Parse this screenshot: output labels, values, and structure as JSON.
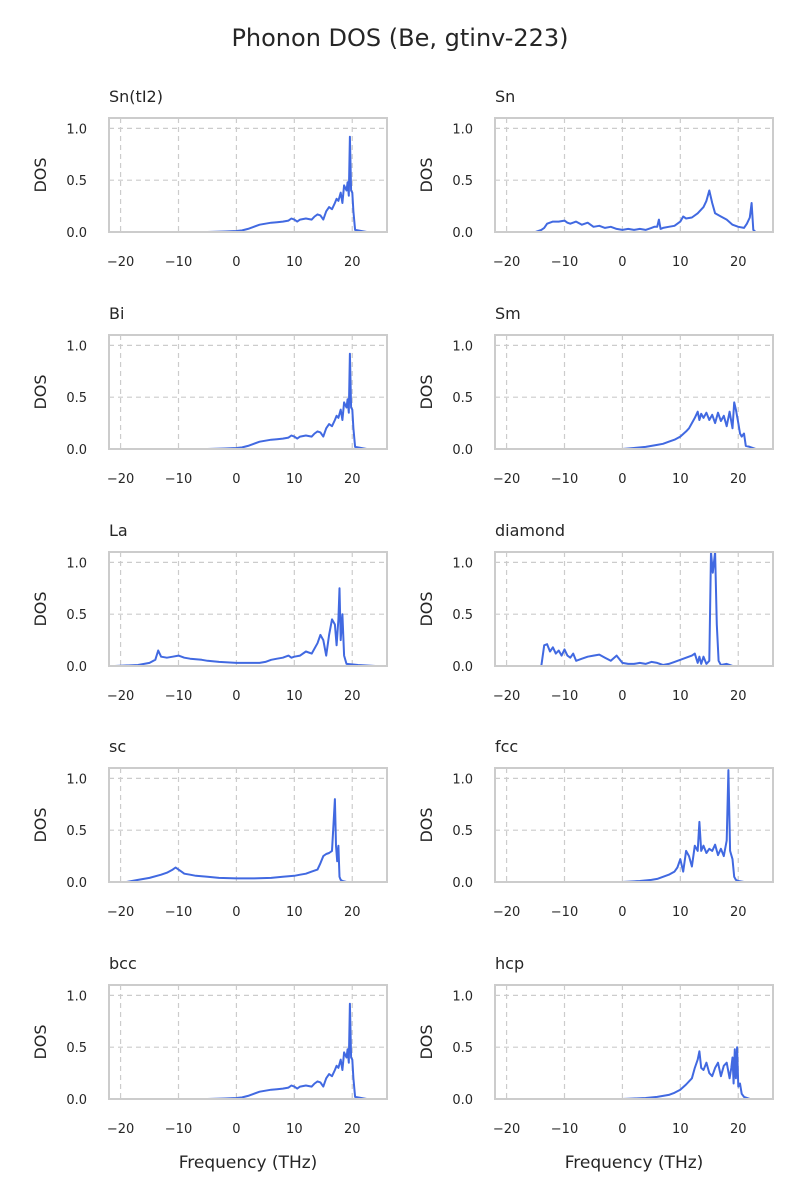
{
  "figure": {
    "title": "Phonon DOS (Be, gtinv-223)"
  },
  "styles": {
    "line_color": "#4169e1",
    "grid_color": "#cccccc",
    "frame_color": "#cccccc",
    "text_color": "#262626"
  },
  "chart_data": [
    {
      "type": "line",
      "title": "Sn(tI2)",
      "xlabel": "",
      "ylabel": "DOS",
      "xlim": [
        -22,
        26
      ],
      "ylim": [
        0,
        1.1
      ],
      "grid": true,
      "xticks": [
        "−20",
        "−10",
        "0",
        "10",
        "20"
      ],
      "yticks": [
        "0.0",
        "0.5",
        "1.0"
      ],
      "x": [
        -5,
        -2,
        0,
        1,
        2,
        3,
        4,
        5,
        6,
        7,
        8,
        9,
        9.5,
        10,
        10.5,
        11,
        12,
        13,
        13.5,
        14,
        14.5,
        15,
        15.5,
        16,
        16.5,
        17,
        17.3,
        17.6,
        18,
        18.3,
        18.6,
        19,
        19.2,
        19.4,
        19.6,
        19.8,
        20,
        20.2,
        20.5,
        22.5
      ],
      "y": [
        0,
        0.005,
        0.01,
        0.015,
        0.03,
        0.05,
        0.07,
        0.08,
        0.09,
        0.095,
        0.1,
        0.11,
        0.13,
        0.12,
        0.1,
        0.12,
        0.13,
        0.12,
        0.15,
        0.17,
        0.16,
        0.12,
        0.2,
        0.24,
        0.22,
        0.28,
        0.32,
        0.3,
        0.38,
        0.28,
        0.45,
        0.4,
        0.48,
        0.35,
        0.92,
        0.4,
        0.38,
        0.2,
        0.02,
        0
      ]
    },
    {
      "type": "line",
      "title": "Sn",
      "xlabel": "",
      "ylabel": "DOS",
      "xlim": [
        -22,
        26
      ],
      "ylim": [
        0,
        1.1
      ],
      "grid": true,
      "xticks": [
        "−20",
        "−10",
        "0",
        "10",
        "20"
      ],
      "yticks": [
        "0.0",
        "0.5",
        "1.0"
      ],
      "x": [
        -18,
        -15,
        -14,
        -13.5,
        -13,
        -12,
        -11,
        -10,
        -9.5,
        -9,
        -8,
        -7,
        -6,
        -5,
        -4,
        -3,
        -2,
        -1,
        0,
        1,
        2,
        3,
        4,
        5,
        5.5,
        6,
        6.3,
        6.6,
        7,
        8,
        9,
        9.5,
        10,
        10.5,
        11,
        12,
        13,
        14,
        14.5,
        15,
        15.5,
        16,
        17,
        18,
        19,
        20,
        21,
        21.5,
        22,
        22.3,
        22.6,
        23,
        26
      ],
      "y": [
        0,
        0,
        0.02,
        0.04,
        0.08,
        0.1,
        0.1,
        0.11,
        0.09,
        0.08,
        0.1,
        0.07,
        0.09,
        0.05,
        0.06,
        0.04,
        0.05,
        0.03,
        0.02,
        0.03,
        0.02,
        0.03,
        0.02,
        0.04,
        0.05,
        0.05,
        0.12,
        0.03,
        0.04,
        0.05,
        0.06,
        0.08,
        0.1,
        0.15,
        0.13,
        0.14,
        0.18,
        0.24,
        0.3,
        0.4,
        0.28,
        0.18,
        0.15,
        0.12,
        0.07,
        0.05,
        0.04,
        0.08,
        0.14,
        0.28,
        0.02,
        0,
        0
      ]
    },
    {
      "type": "line",
      "title": "Bi",
      "xlabel": "",
      "ylabel": "DOS",
      "xlim": [
        -22,
        26
      ],
      "ylim": [
        0,
        1.1
      ],
      "grid": true,
      "xticks": [
        "−20",
        "−10",
        "0",
        "10",
        "20"
      ],
      "yticks": [
        "0.0",
        "0.5",
        "1.0"
      ],
      "x": [
        -5,
        -2,
        0,
        1,
        2,
        3,
        4,
        5,
        6,
        7,
        8,
        9,
        9.5,
        10,
        10.5,
        11,
        12,
        13,
        13.5,
        14,
        14.5,
        15,
        15.5,
        16,
        16.5,
        17,
        17.3,
        17.6,
        18,
        18.3,
        18.6,
        19,
        19.2,
        19.4,
        19.6,
        19.8,
        20,
        20.2,
        20.5,
        22.5
      ],
      "y": [
        0,
        0.005,
        0.01,
        0.015,
        0.03,
        0.05,
        0.07,
        0.08,
        0.09,
        0.095,
        0.1,
        0.11,
        0.13,
        0.12,
        0.1,
        0.12,
        0.13,
        0.12,
        0.15,
        0.17,
        0.16,
        0.12,
        0.2,
        0.24,
        0.22,
        0.28,
        0.32,
        0.3,
        0.38,
        0.28,
        0.45,
        0.4,
        0.48,
        0.35,
        0.92,
        0.4,
        0.38,
        0.2,
        0.02,
        0
      ]
    },
    {
      "type": "line",
      "title": "Sm",
      "xlabel": "",
      "ylabel": "DOS",
      "xlim": [
        -22,
        26
      ],
      "ylim": [
        0,
        1.1
      ],
      "grid": true,
      "xticks": [
        "−20",
        "−10",
        "0",
        "10",
        "20"
      ],
      "yticks": [
        "0.0",
        "0.5",
        "1.0"
      ],
      "x": [
        0,
        2,
        4,
        5,
        6,
        7,
        8,
        9,
        10,
        11,
        11.5,
        12,
        12.5,
        13,
        13.3,
        13.6,
        14,
        14.5,
        15,
        15.5,
        16,
        16.5,
        17,
        17.5,
        18,
        18.5,
        19,
        19.3,
        19.6,
        20,
        20.3,
        20.6,
        21,
        21.3,
        22,
        23
      ],
      "y": [
        0,
        0.01,
        0.02,
        0.03,
        0.04,
        0.05,
        0.07,
        0.09,
        0.12,
        0.17,
        0.2,
        0.25,
        0.3,
        0.36,
        0.28,
        0.34,
        0.3,
        0.35,
        0.28,
        0.33,
        0.25,
        0.35,
        0.27,
        0.32,
        0.22,
        0.36,
        0.2,
        0.45,
        0.38,
        0.25,
        0.15,
        0.12,
        0.15,
        0.03,
        0.02,
        0
      ]
    },
    {
      "type": "line",
      "title": "La",
      "xlabel": "",
      "ylabel": "DOS",
      "xlim": [
        -22,
        26
      ],
      "ylim": [
        0,
        1.1
      ],
      "grid": true,
      "xticks": [
        "−20",
        "−10",
        "0",
        "10",
        "20"
      ],
      "yticks": [
        "0.0",
        "0.5",
        "1.0"
      ],
      "x": [
        -21,
        -17,
        -15,
        -14,
        -13.5,
        -13,
        -12,
        -11,
        -10,
        -9,
        -8,
        -6,
        -5,
        -3,
        0,
        2,
        4,
        5,
        6,
        7,
        8,
        9,
        9.5,
        10,
        11,
        12,
        13,
        14,
        14.5,
        15,
        15.5,
        16,
        16.5,
        17,
        17.3,
        17.6,
        17.8,
        18,
        18.3,
        18.6,
        19,
        21,
        24
      ],
      "y": [
        0,
        0.01,
        0.03,
        0.06,
        0.15,
        0.09,
        0.08,
        0.09,
        0.1,
        0.08,
        0.07,
        0.06,
        0.05,
        0.04,
        0.03,
        0.03,
        0.03,
        0.04,
        0.06,
        0.07,
        0.08,
        0.1,
        0.08,
        0.09,
        0.1,
        0.14,
        0.12,
        0.22,
        0.3,
        0.25,
        0.1,
        0.3,
        0.45,
        0.4,
        0.2,
        0.45,
        0.75,
        0.25,
        0.5,
        0.1,
        0.02,
        0.01,
        0
      ]
    },
    {
      "type": "line",
      "title": "diamond",
      "xlabel": "",
      "ylabel": "DOS",
      "xlim": [
        -22,
        26
      ],
      "ylim": [
        0,
        1.1
      ],
      "grid": true,
      "xticks": [
        "−20",
        "−10",
        "0",
        "10",
        "20"
      ],
      "yticks": [
        "0.0",
        "0.5",
        "1.0"
      ],
      "x": [
        -17,
        -14,
        -13.5,
        -13,
        -12.5,
        -12,
        -11.5,
        -11,
        -10.5,
        -10,
        -9.5,
        -9,
        -8.5,
        -8,
        -7,
        -6,
        -5,
        -4,
        -3,
        -2,
        -1,
        0,
        1,
        2,
        3,
        4,
        5,
        6,
        7,
        8,
        9,
        10,
        11,
        12,
        12.5,
        13,
        13.3,
        13.6,
        14,
        14.5,
        15,
        15.3,
        15.6,
        16,
        16.3,
        16.6,
        17,
        18,
        19
      ],
      "y": [
        0,
        0,
        0.2,
        0.21,
        0.14,
        0.18,
        0.12,
        0.15,
        0.1,
        0.16,
        0.1,
        0.08,
        0.12,
        0.05,
        0.07,
        0.09,
        0.1,
        0.11,
        0.08,
        0.05,
        0.1,
        0.03,
        0.02,
        0.02,
        0.03,
        0.02,
        0.04,
        0.03,
        0.01,
        0.02,
        0.04,
        0.06,
        0.08,
        0.1,
        0.12,
        0.03,
        0.09,
        0.02,
        0.09,
        0.02,
        0.05,
        1.1,
        0.9,
        1.1,
        0.4,
        0.05,
        0.01,
        0.02,
        0
      ]
    },
    {
      "type": "line",
      "title": "sc",
      "xlabel": "",
      "ylabel": "DOS",
      "xlim": [
        -22,
        26
      ],
      "ylim": [
        0,
        1.1
      ],
      "grid": true,
      "xticks": [
        "−20",
        "−10",
        "0",
        "10",
        "20"
      ],
      "yticks": [
        "0.0",
        "0.5",
        "1.0"
      ],
      "x": [
        -21,
        -19,
        -17,
        -15,
        -13,
        -12,
        -11,
        -10.5,
        -10,
        -9.5,
        -9,
        -8,
        -7,
        -5,
        -3,
        0,
        3,
        6,
        8,
        10,
        11,
        12,
        13,
        14,
        14.5,
        15,
        15.5,
        16,
        16.5,
        17,
        17.2,
        17.4,
        17.6,
        17.8,
        18,
        18.3,
        19,
        21
      ],
      "y": [
        0,
        0,
        0.02,
        0.04,
        0.07,
        0.09,
        0.12,
        0.14,
        0.12,
        0.1,
        0.08,
        0.07,
        0.06,
        0.05,
        0.04,
        0.035,
        0.035,
        0.04,
        0.05,
        0.06,
        0.07,
        0.08,
        0.1,
        0.12,
        0.18,
        0.25,
        0.27,
        0.28,
        0.3,
        0.8,
        0.35,
        0.2,
        0.35,
        0.05,
        0.02,
        0.01,
        0,
        0
      ]
    },
    {
      "type": "line",
      "title": "fcc",
      "xlabel": "",
      "ylabel": "DOS",
      "xlim": [
        -22,
        26
      ],
      "ylim": [
        0,
        1.1
      ],
      "grid": true,
      "xticks": [
        "−20",
        "−10",
        "0",
        "10",
        "20"
      ],
      "yticks": [
        "0.0",
        "0.5",
        "1.0"
      ],
      "x": [
        0,
        3,
        5,
        6,
        7,
        8,
        9,
        9.5,
        10,
        10.5,
        11,
        11.5,
        12,
        12.5,
        13,
        13.3,
        13.6,
        14,
        14.5,
        15,
        15.5,
        16,
        16.5,
        17,
        17.5,
        18,
        18.3,
        18.6,
        19,
        19.3,
        19.6,
        20,
        21,
        23
      ],
      "y": [
        0,
        0.01,
        0.02,
        0.03,
        0.05,
        0.07,
        0.1,
        0.14,
        0.22,
        0.1,
        0.3,
        0.25,
        0.15,
        0.35,
        0.3,
        0.58,
        0.3,
        0.35,
        0.28,
        0.32,
        0.3,
        0.36,
        0.26,
        0.32,
        0.25,
        0.4,
        1.08,
        0.3,
        0.22,
        0.05,
        0.02,
        0.01,
        0,
        0
      ]
    },
    {
      "type": "line",
      "title": "bcc",
      "xlabel": "Frequency (THz)",
      "ylabel": "DOS",
      "xlim": [
        -22,
        26
      ],
      "ylim": [
        0,
        1.1
      ],
      "grid": true,
      "xticks": [
        "−20",
        "−10",
        "0",
        "10",
        "20"
      ],
      "yticks": [
        "0.0",
        "0.5",
        "1.0"
      ],
      "x": [
        -5,
        -2,
        0,
        1,
        2,
        3,
        4,
        5,
        6,
        7,
        8,
        9,
        9.5,
        10,
        10.5,
        11,
        12,
        13,
        13.5,
        14,
        14.5,
        15,
        15.5,
        16,
        16.5,
        17,
        17.3,
        17.6,
        18,
        18.3,
        18.6,
        19,
        19.2,
        19.4,
        19.6,
        19.8,
        20,
        20.2,
        20.5,
        22.5
      ],
      "y": [
        0,
        0.005,
        0.01,
        0.015,
        0.03,
        0.05,
        0.07,
        0.08,
        0.09,
        0.095,
        0.1,
        0.11,
        0.13,
        0.12,
        0.1,
        0.12,
        0.13,
        0.12,
        0.15,
        0.17,
        0.16,
        0.12,
        0.2,
        0.24,
        0.22,
        0.28,
        0.32,
        0.3,
        0.38,
        0.28,
        0.45,
        0.4,
        0.48,
        0.35,
        0.92,
        0.4,
        0.38,
        0.2,
        0.02,
        0
      ]
    },
    {
      "type": "line",
      "title": "hcp",
      "xlabel": "Frequency (THz)",
      "ylabel": "DOS",
      "xlim": [
        -22,
        26
      ],
      "ylim": [
        0,
        1.1
      ],
      "grid": true,
      "xticks": [
        "−20",
        "−10",
        "0",
        "10",
        "20"
      ],
      "yticks": [
        "0.0",
        "0.5",
        "1.0"
      ],
      "x": [
        0,
        2,
        4,
        6,
        8,
        9,
        10,
        11,
        12,
        12.5,
        13,
        13.3,
        13.6,
        14,
        14.5,
        15,
        15.5,
        16,
        16.5,
        17,
        17.5,
        18,
        18.5,
        18.8,
        19,
        19.2,
        19.4,
        19.6,
        19.8,
        20,
        20.3,
        20.6,
        21,
        22
      ],
      "y": [
        0,
        0.005,
        0.01,
        0.02,
        0.04,
        0.06,
        0.09,
        0.14,
        0.2,
        0.3,
        0.38,
        0.46,
        0.3,
        0.28,
        0.35,
        0.25,
        0.22,
        0.3,
        0.35,
        0.22,
        0.32,
        0.35,
        0.2,
        0.3,
        0.4,
        0.15,
        0.48,
        0.2,
        0.5,
        0.12,
        0.15,
        0.05,
        0.02,
        0
      ]
    }
  ]
}
